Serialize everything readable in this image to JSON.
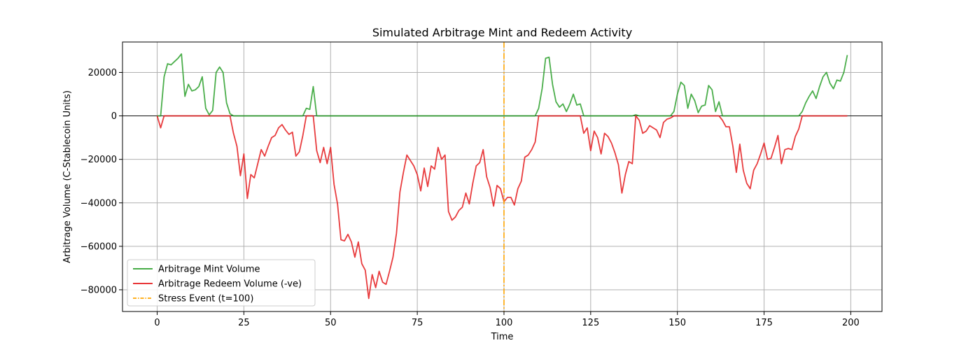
{
  "chart_data": {
    "type": "line",
    "title": "Simulated Arbitrage Mint and Redeem Activity",
    "xlabel": "Time",
    "ylabel": "Arbitrage Volume (C-Stablecoin Units)",
    "xlim": [
      -10,
      209
    ],
    "ylim": [
      -90000,
      34000
    ],
    "xticks": [
      0,
      25,
      50,
      75,
      100,
      125,
      150,
      175,
      200
    ],
    "yticks": [
      -80000,
      -60000,
      -40000,
      -20000,
      0,
      20000
    ],
    "ytick_labels": [
      "−80000",
      "−60000",
      "−40000",
      "−20000",
      "0",
      "20000"
    ],
    "grid": true,
    "legend_position": "lower-left",
    "zero_line": true,
    "series": [
      {
        "name": "Arbitrage Mint Volume",
        "color": "#2ca02c",
        "points": [
          [
            0,
            0
          ],
          [
            1,
            0
          ],
          [
            2,
            18000
          ],
          [
            3,
            24000
          ],
          [
            4,
            23500
          ],
          [
            5,
            25000
          ],
          [
            6,
            26500
          ],
          [
            7,
            28500
          ],
          [
            8,
            9000
          ],
          [
            9,
            14500
          ],
          [
            10,
            11500
          ],
          [
            11,
            12000
          ],
          [
            12,
            13500
          ],
          [
            13,
            18000
          ],
          [
            14,
            3500
          ],
          [
            15,
            500
          ],
          [
            16,
            2500
          ],
          [
            17,
            20000
          ],
          [
            18,
            22500
          ],
          [
            19,
            20000
          ],
          [
            20,
            6000
          ],
          [
            21,
            1000
          ],
          [
            22,
            0
          ],
          [
            30,
            0
          ],
          [
            40,
            0
          ],
          [
            42,
            0
          ],
          [
            43,
            3500
          ],
          [
            44,
            3000
          ],
          [
            45,
            13500
          ],
          [
            46,
            0
          ],
          [
            60,
            0
          ],
          [
            80,
            0
          ],
          [
            100,
            0
          ],
          [
            108,
            0
          ],
          [
            109,
            0
          ],
          [
            110,
            3500
          ],
          [
            111,
            12500
          ],
          [
            112,
            26500
          ],
          [
            113,
            27000
          ],
          [
            114,
            14500
          ],
          [
            115,
            6500
          ],
          [
            116,
            4000
          ],
          [
            117,
            5500
          ],
          [
            118,
            2000
          ],
          [
            119,
            5500
          ],
          [
            120,
            10000
          ],
          [
            121,
            5000
          ],
          [
            122,
            5500
          ],
          [
            123,
            0
          ],
          [
            130,
            0
          ],
          [
            137,
            0
          ],
          [
            138,
            500
          ],
          [
            139,
            0
          ],
          [
            145,
            0
          ],
          [
            148,
            0
          ],
          [
            149,
            2000
          ],
          [
            150,
            10000
          ],
          [
            151,
            15500
          ],
          [
            152,
            14000
          ],
          [
            153,
            3500
          ],
          [
            154,
            10000
          ],
          [
            155,
            7000
          ],
          [
            156,
            1500
          ],
          [
            157,
            4500
          ],
          [
            158,
            5000
          ],
          [
            159,
            14000
          ],
          [
            160,
            12000
          ],
          [
            161,
            2000
          ],
          [
            162,
            6500
          ],
          [
            163,
            0
          ],
          [
            170,
            0
          ],
          [
            180,
            0
          ],
          [
            185,
            0
          ],
          [
            186,
            2000
          ],
          [
            187,
            6000
          ],
          [
            188,
            9000
          ],
          [
            189,
            11500
          ],
          [
            190,
            8000
          ],
          [
            191,
            13500
          ],
          [
            192,
            18000
          ],
          [
            193,
            20000
          ],
          [
            194,
            15000
          ],
          [
            195,
            12500
          ],
          [
            196,
            16500
          ],
          [
            197,
            16000
          ],
          [
            198,
            20000
          ],
          [
            199,
            28000
          ]
        ]
      },
      {
        "name": "Arbitrage Redeem Volume (-ve)",
        "color": "#e41a1c",
        "points": [
          [
            0,
            0
          ],
          [
            1,
            -5500
          ],
          [
            2,
            0
          ],
          [
            20,
            0
          ],
          [
            21,
            0
          ],
          [
            22,
            -8000
          ],
          [
            23,
            -14000
          ],
          [
            24,
            -27500
          ],
          [
            25,
            -17500
          ],
          [
            26,
            -38000
          ],
          [
            27,
            -27000
          ],
          [
            28,
            -28500
          ],
          [
            29,
            -22000
          ],
          [
            30,
            -15500
          ],
          [
            31,
            -18500
          ],
          [
            32,
            -14000
          ],
          [
            33,
            -10000
          ],
          [
            34,
            -9000
          ],
          [
            35,
            -5500
          ],
          [
            36,
            -4000
          ],
          [
            37,
            -6500
          ],
          [
            38,
            -8500
          ],
          [
            39,
            -7500
          ],
          [
            40,
            -18500
          ],
          [
            41,
            -16500
          ],
          [
            42,
            -9000
          ],
          [
            43,
            0
          ],
          [
            44,
            0
          ],
          [
            45,
            0
          ],
          [
            46,
            -16000
          ],
          [
            47,
            -21500
          ],
          [
            48,
            -14500
          ],
          [
            49,
            -22000
          ],
          [
            50,
            -14500
          ],
          [
            51,
            -31500
          ],
          [
            52,
            -40500
          ],
          [
            53,
            -57000
          ],
          [
            54,
            -57500
          ],
          [
            55,
            -54500
          ],
          [
            56,
            -58000
          ],
          [
            57,
            -65000
          ],
          [
            58,
            -58000
          ],
          [
            59,
            -68000
          ],
          [
            60,
            -71000
          ],
          [
            61,
            -84000
          ],
          [
            62,
            -73000
          ],
          [
            63,
            -79000
          ],
          [
            64,
            -71500
          ],
          [
            65,
            -76500
          ],
          [
            66,
            -77500
          ],
          [
            67,
            -71500
          ],
          [
            68,
            -65000
          ],
          [
            69,
            -54000
          ],
          [
            70,
            -35000
          ],
          [
            71,
            -26000
          ],
          [
            72,
            -18000
          ],
          [
            73,
            -20500
          ],
          [
            74,
            -23000
          ],
          [
            75,
            -27000
          ],
          [
            76,
            -34500
          ],
          [
            77,
            -24000
          ],
          [
            78,
            -32500
          ],
          [
            79,
            -23000
          ],
          [
            80,
            -24500
          ],
          [
            81,
            -14500
          ],
          [
            82,
            -20000
          ],
          [
            83,
            -18000
          ],
          [
            84,
            -44000
          ],
          [
            85,
            -48000
          ],
          [
            86,
            -46500
          ],
          [
            87,
            -43500
          ],
          [
            88,
            -42000
          ],
          [
            89,
            -35500
          ],
          [
            90,
            -40500
          ],
          [
            91,
            -31000
          ],
          [
            92,
            -23000
          ],
          [
            93,
            -21500
          ],
          [
            94,
            -15500
          ],
          [
            95,
            -28000
          ],
          [
            96,
            -33000
          ],
          [
            97,
            -41500
          ],
          [
            98,
            -32000
          ],
          [
            99,
            -33500
          ],
          [
            100,
            -39500
          ],
          [
            101,
            -37500
          ],
          [
            102,
            -37500
          ],
          [
            103,
            -41000
          ],
          [
            104,
            -33500
          ],
          [
            105,
            -30000
          ],
          [
            106,
            -19000
          ],
          [
            107,
            -18000
          ],
          [
            108,
            -15500
          ],
          [
            109,
            -12000
          ],
          [
            110,
            0
          ],
          [
            120,
            0
          ],
          [
            122,
            0
          ],
          [
            123,
            -8000
          ],
          [
            124,
            -5500
          ],
          [
            125,
            -16000
          ],
          [
            126,
            -7000
          ],
          [
            127,
            -10000
          ],
          [
            128,
            -17500
          ],
          [
            129,
            -8000
          ],
          [
            130,
            -9500
          ],
          [
            131,
            -12500
          ],
          [
            132,
            -17000
          ],
          [
            133,
            -22500
          ],
          [
            134,
            -35500
          ],
          [
            135,
            -27000
          ],
          [
            136,
            -21000
          ],
          [
            137,
            -22000
          ],
          [
            138,
            0
          ],
          [
            139,
            -2000
          ],
          [
            140,
            -8000
          ],
          [
            141,
            -7000
          ],
          [
            142,
            -4500
          ],
          [
            143,
            -5500
          ],
          [
            144,
            -6500
          ],
          [
            145,
            -10000
          ],
          [
            146,
            -3000
          ],
          [
            147,
            -1500
          ],
          [
            148,
            -1000
          ],
          [
            149,
            0
          ],
          [
            160,
            0
          ],
          [
            162,
            0
          ],
          [
            163,
            -2000
          ],
          [
            164,
            -5000
          ],
          [
            165,
            -5000
          ],
          [
            166,
            -14000
          ],
          [
            167,
            -26000
          ],
          [
            168,
            -13000
          ],
          [
            169,
            -25000
          ],
          [
            170,
            -31000
          ],
          [
            171,
            -33500
          ],
          [
            172,
            -25000
          ],
          [
            173,
            -22000
          ],
          [
            174,
            -17500
          ],
          [
            175,
            -12500
          ],
          [
            176,
            -20000
          ],
          [
            177,
            -19500
          ],
          [
            178,
            -14500
          ],
          [
            179,
            -9000
          ],
          [
            180,
            -22000
          ],
          [
            181,
            -15500
          ],
          [
            182,
            -15000
          ],
          [
            183,
            -15500
          ],
          [
            184,
            -9500
          ],
          [
            185,
            -6000
          ],
          [
            186,
            0
          ],
          [
            199,
            0
          ]
        ]
      }
    ],
    "annotations": [
      {
        "name": "Stress Event (t=100)",
        "type": "vline",
        "x": 100,
        "color": "#ffa500"
      }
    ]
  }
}
